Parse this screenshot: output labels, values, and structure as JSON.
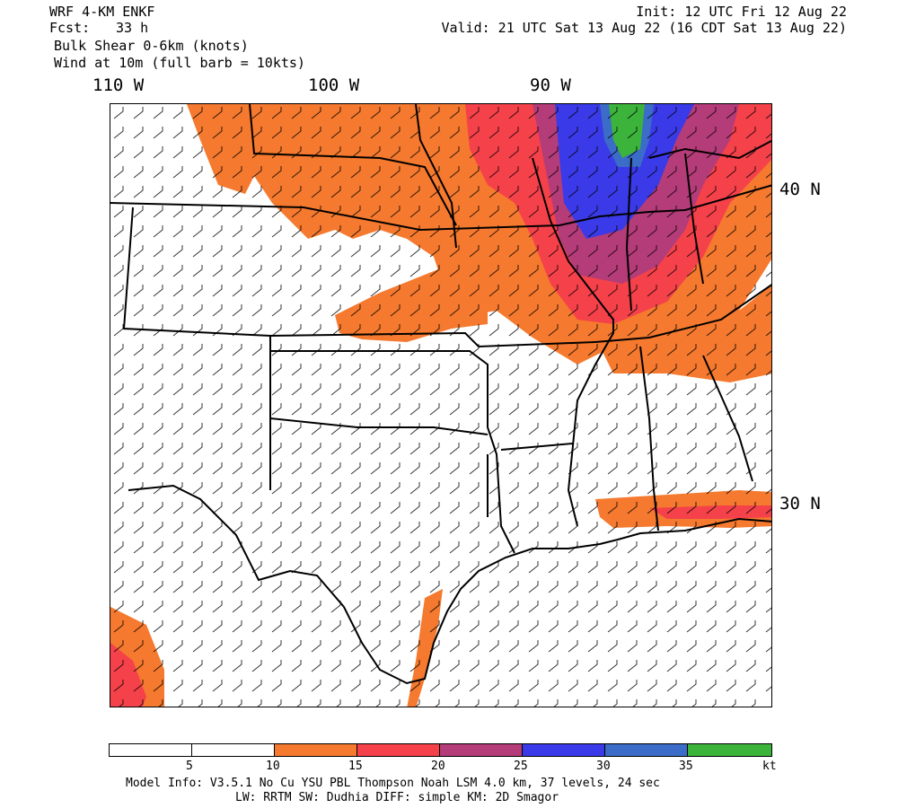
{
  "header": {
    "model": "WRF 4-KM ENKF",
    "fcst_label": "Fcst:",
    "fcst_value": "33 h",
    "init": "Init: 12 UTC Fri 12 Aug 22",
    "valid": "Valid: 21 UTC Sat 13 Aug 22 (16 CDT Sat 13 Aug 22)",
    "field1": "Bulk Shear 0-6km (knots)",
    "field2": "Wind at 10m (full barb = 10kts)"
  },
  "axes": {
    "lon_labels": [
      "110 W",
      "100 W",
      "90 W"
    ],
    "lat_labels": [
      "40 N",
      "30 N"
    ]
  },
  "colorbar": {
    "unit": "kt",
    "ticks": [
      "5",
      "10",
      "15",
      "20",
      "25",
      "30",
      "35"
    ],
    "colors": [
      "#ffffff",
      "#ffffff",
      "#f5792e",
      "#f5414a",
      "#b43c78",
      "#3a3ae8",
      "#3a6cc8",
      "#3cb43c"
    ]
  },
  "footer": {
    "line1": "Model Info: V3.5.1   No Cu   YSU PBL  Thompson    Noah LSM  4.0 km,  37 levels,   24 sec",
    "line2": "LW: RRTM SW: Dudhia  DIFF: simple KM: 2D Smagor"
  }
}
